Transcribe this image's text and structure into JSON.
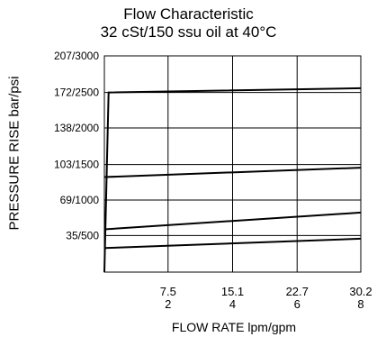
{
  "chart_data": {
    "type": "line",
    "title": "Flow Characteristic",
    "subtitle": "32 cSt/150 ssu oil at 40°C",
    "xlabel": "FLOW RATE lpm/gpm",
    "ylabel": "PRESSURE RISE bar/psi",
    "xlim": [
      0,
      30.2
    ],
    "ylim": [
      0,
      207
    ],
    "x_ticks": [
      {
        "value": 7.5,
        "label_top": "7.5",
        "label_bottom": "2"
      },
      {
        "value": 15.1,
        "label_top": "15.1",
        "label_bottom": "4"
      },
      {
        "value": 22.7,
        "label_top": "22.7",
        "label_bottom": "6"
      },
      {
        "value": 30.2,
        "label_top": "30.2",
        "label_bottom": "8"
      }
    ],
    "y_ticks": [
      {
        "value": 35,
        "label": "35/500"
      },
      {
        "value": 69,
        "label": "69/1000"
      },
      {
        "value": 103,
        "label": "103/1500"
      },
      {
        "value": 138,
        "label": "138/2000"
      },
      {
        "value": 172,
        "label": "172/2500"
      },
      {
        "value": 207,
        "label": "207/3000"
      }
    ],
    "grid": true,
    "series": [
      {
        "x": [
          0,
          0.5,
          30.2
        ],
        "y": [
          0,
          172,
          176
        ]
      },
      {
        "x": [
          0,
          30.2
        ],
        "y": [
          91,
          100
        ]
      },
      {
        "x": [
          0,
          30.2
        ],
        "y": [
          41,
          57
        ]
      },
      {
        "x": [
          0,
          30.2
        ],
        "y": [
          23,
          32
        ]
      }
    ],
    "colors": {
      "line": "#000000",
      "grid": "#000000"
    }
  }
}
